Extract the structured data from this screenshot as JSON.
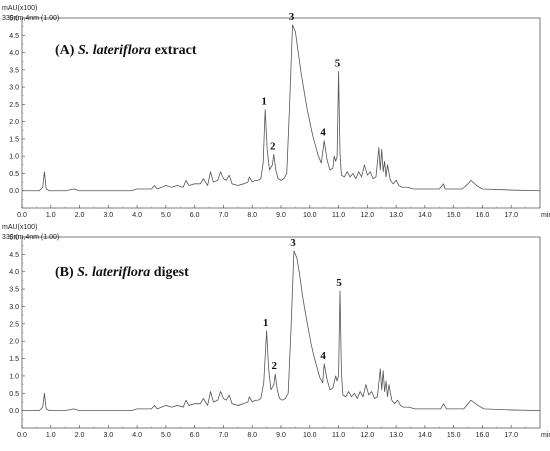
{
  "chart_data": [
    {
      "type": "line",
      "title_prefix": "(A) ",
      "title_italic": "S. lateriflora",
      "title_suffix": " extract",
      "ylabel": "mAU(x100)",
      "detector": "330nm,4nm (1.00)",
      "xunit": "min",
      "xlim": [
        0.0,
        18.0
      ],
      "ylim": [
        -0.5,
        5.0
      ],
      "xticks": [
        "0.0",
        "1.0",
        "2.0",
        "3.0",
        "4.0",
        "5.0",
        "6.0",
        "7.0",
        "8.0",
        "9.0",
        "10.0",
        "11.0",
        "12.0",
        "13.0",
        "14.0",
        "15.0",
        "16.0",
        "17.0"
      ],
      "yticks": [
        "0.0",
        "0.5",
        "1.0",
        "1.5",
        "2.0",
        "2.5",
        "3.0",
        "3.5",
        "4.0",
        "4.5",
        "5.0"
      ],
      "peaks": [
        {
          "label": "1",
          "x": 8.45,
          "y": 2.35
        },
        {
          "label": "2",
          "x": 8.75,
          "y": 1.05
        },
        {
          "label": "3",
          "x": 9.4,
          "y": 4.8
        },
        {
          "label": "4",
          "x": 10.5,
          "y": 1.45
        },
        {
          "label": "5",
          "x": 11.0,
          "y": 3.45
        }
      ],
      "series": [
        {
          "x": [
            0.0,
            0.6,
            0.72,
            0.78,
            0.84,
            0.95,
            1.5,
            1.8,
            2.0,
            3.0,
            3.8,
            4.0,
            4.5,
            4.6,
            4.7,
            4.85,
            5.0,
            5.2,
            5.4,
            5.6,
            5.7,
            5.8,
            6.0,
            6.2,
            6.3,
            6.45,
            6.55,
            6.65,
            6.8,
            6.9,
            7.0,
            7.1,
            7.2,
            7.3,
            7.5,
            7.7,
            7.85,
            7.9,
            8.0,
            8.1,
            8.2,
            8.3,
            8.38,
            8.45,
            8.52,
            8.6,
            8.7,
            8.75,
            8.82,
            8.9,
            9.0,
            9.1,
            9.2,
            9.3,
            9.4,
            9.5,
            9.6,
            9.7,
            9.8,
            9.9,
            10.0,
            10.1,
            10.2,
            10.3,
            10.4,
            10.5,
            10.6,
            10.7,
            10.8,
            10.85,
            10.9,
            10.95,
            11.0,
            11.05,
            11.1,
            11.2,
            11.3,
            11.4,
            11.5,
            11.6,
            11.7,
            11.8,
            11.9,
            12.0,
            12.1,
            12.2,
            12.3,
            12.4,
            12.45,
            12.5,
            12.55,
            12.6,
            12.65,
            12.7,
            12.8,
            12.9,
            13.0,
            13.1,
            13.2,
            13.4,
            13.6,
            14.0,
            14.5,
            14.65,
            14.7,
            15.0,
            15.3,
            15.5,
            15.6,
            15.8,
            16.0,
            17.0,
            18.0
          ],
          "values": [
            0.0,
            0.0,
            0.1,
            0.55,
            0.05,
            0.0,
            0.0,
            0.05,
            0.0,
            0.0,
            0.0,
            0.05,
            0.05,
            0.15,
            0.05,
            0.1,
            0.15,
            0.1,
            0.15,
            0.1,
            0.3,
            0.15,
            0.2,
            0.2,
            0.35,
            0.15,
            0.55,
            0.25,
            0.3,
            0.55,
            0.35,
            0.3,
            0.45,
            0.2,
            0.15,
            0.2,
            0.25,
            0.4,
            0.25,
            0.3,
            0.3,
            0.35,
            0.8,
            2.35,
            1.2,
            0.6,
            0.75,
            1.05,
            0.6,
            0.35,
            0.3,
            0.35,
            0.5,
            2.5,
            4.8,
            4.6,
            4.0,
            3.4,
            2.9,
            2.4,
            2.0,
            1.6,
            1.3,
            1.0,
            0.8,
            1.45,
            0.9,
            0.6,
            0.65,
            1.0,
            0.85,
            1.0,
            3.45,
            1.1,
            0.45,
            0.4,
            0.55,
            0.4,
            0.5,
            0.35,
            0.55,
            0.4,
            0.75,
            0.45,
            0.55,
            0.35,
            0.4,
            1.25,
            0.6,
            1.2,
            0.55,
            0.85,
            0.4,
            0.75,
            0.3,
            0.2,
            0.3,
            0.15,
            0.1,
            0.1,
            0.05,
            0.05,
            0.05,
            0.2,
            0.05,
            0.05,
            0.05,
            0.2,
            0.3,
            0.15,
            0.05,
            0.02,
            0.0
          ]
        }
      ]
    },
    {
      "type": "line",
      "title_prefix": "(B) ",
      "title_italic": "S. lateriflora",
      "title_suffix": " digest",
      "ylabel": "mAU(x100)",
      "detector": "330nm,4nm (1.00)",
      "xunit": "min",
      "xlim": [
        0.0,
        18.0
      ],
      "ylim": [
        -0.5,
        5.0
      ],
      "xticks": [
        "0.0",
        "1.0",
        "2.0",
        "3.0",
        "4.0",
        "5.0",
        "6.0",
        "7.0",
        "8.0",
        "9.0",
        "10.0",
        "11.0",
        "12.0",
        "13.0",
        "14.0",
        "15.0",
        "16.0",
        "17.0"
      ],
      "yticks": [
        "0.0",
        "0.5",
        "1.0",
        "1.5",
        "2.0",
        "2.5",
        "3.0",
        "3.5",
        "4.0",
        "4.5",
        "5.0"
      ],
      "peaks": [
        {
          "label": "1",
          "x": 8.5,
          "y": 2.3
        },
        {
          "label": "2",
          "x": 8.8,
          "y": 1.05
        },
        {
          "label": "3",
          "x": 9.45,
          "y": 4.6
        },
        {
          "label": "4",
          "x": 10.5,
          "y": 1.35
        },
        {
          "label": "5",
          "x": 11.05,
          "y": 3.45
        }
      ],
      "series": [
        {
          "x": [
            0.0,
            0.6,
            0.72,
            0.78,
            0.84,
            0.95,
            1.5,
            1.8,
            2.0,
            3.0,
            3.8,
            4.0,
            4.5,
            4.6,
            4.7,
            4.85,
            5.0,
            5.2,
            5.4,
            5.6,
            5.7,
            5.8,
            6.0,
            6.2,
            6.3,
            6.45,
            6.55,
            6.65,
            6.8,
            6.9,
            7.0,
            7.1,
            7.2,
            7.3,
            7.5,
            7.7,
            7.85,
            7.9,
            8.0,
            8.1,
            8.2,
            8.3,
            8.4,
            8.5,
            8.57,
            8.65,
            8.75,
            8.8,
            8.87,
            8.95,
            9.05,
            9.15,
            9.25,
            9.35,
            9.45,
            9.55,
            9.65,
            9.75,
            9.85,
            9.95,
            10.05,
            10.15,
            10.25,
            10.35,
            10.45,
            10.5,
            10.6,
            10.7,
            10.8,
            10.9,
            10.95,
            11.0,
            11.05,
            11.1,
            11.15,
            11.25,
            11.35,
            11.45,
            11.55,
            11.65,
            11.75,
            11.85,
            11.95,
            12.05,
            12.15,
            12.25,
            12.35,
            12.45,
            12.5,
            12.55,
            12.6,
            12.65,
            12.7,
            12.75,
            12.85,
            12.95,
            13.05,
            13.15,
            13.25,
            13.45,
            13.65,
            14.05,
            14.55,
            14.65,
            14.75,
            15.05,
            15.35,
            15.5,
            15.6,
            15.85,
            16.05,
            17.0,
            18.0
          ],
          "values": [
            0.0,
            0.0,
            0.1,
            0.5,
            0.05,
            0.0,
            0.0,
            0.05,
            0.0,
            0.0,
            0.0,
            0.05,
            0.05,
            0.15,
            0.05,
            0.1,
            0.15,
            0.1,
            0.15,
            0.1,
            0.3,
            0.15,
            0.2,
            0.2,
            0.35,
            0.15,
            0.55,
            0.25,
            0.3,
            0.55,
            0.35,
            0.3,
            0.45,
            0.2,
            0.15,
            0.2,
            0.25,
            0.4,
            0.25,
            0.3,
            0.3,
            0.35,
            0.8,
            2.3,
            1.2,
            0.6,
            0.75,
            1.05,
            0.6,
            0.35,
            0.3,
            0.35,
            0.5,
            2.4,
            4.6,
            4.4,
            3.9,
            3.3,
            2.8,
            2.35,
            1.9,
            1.55,
            1.25,
            0.95,
            0.8,
            1.35,
            0.9,
            0.6,
            0.65,
            1.0,
            0.85,
            1.0,
            3.45,
            1.1,
            0.45,
            0.4,
            0.55,
            0.4,
            0.5,
            0.35,
            0.55,
            0.4,
            0.75,
            0.45,
            0.55,
            0.35,
            0.4,
            1.2,
            0.6,
            1.15,
            0.55,
            0.85,
            0.4,
            0.75,
            0.3,
            0.2,
            0.3,
            0.15,
            0.1,
            0.1,
            0.05,
            0.05,
            0.05,
            0.2,
            0.05,
            0.05,
            0.05,
            0.2,
            0.3,
            0.15,
            0.05,
            0.02,
            0.0
          ]
        }
      ]
    }
  ]
}
